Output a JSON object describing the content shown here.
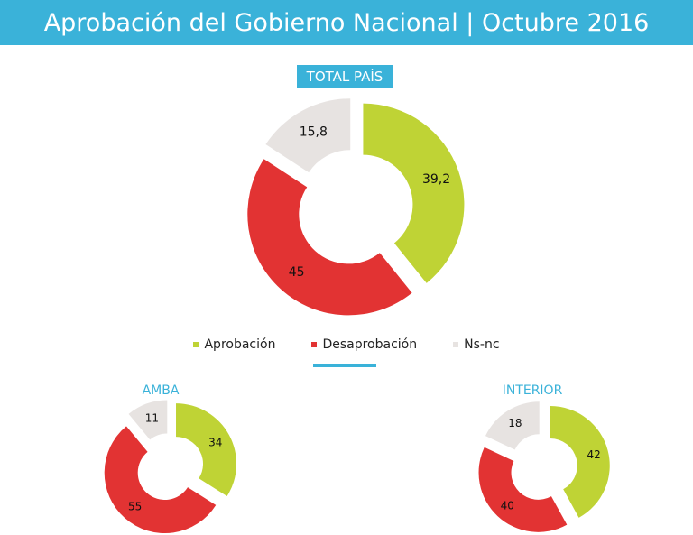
{
  "header": {
    "title": "Aprobación del Gobierno Nacional | Octubre 2016"
  },
  "colors": {
    "header_bg": "#3ab2d9",
    "aprobacion": "#bfd335",
    "desaprobacion": "#e23333",
    "nsnc": "#e7e3e1"
  },
  "legend": [
    {
      "label": "Aprobación",
      "color": "#bfd335"
    },
    {
      "label": "Desaprobación",
      "color": "#e23333"
    },
    {
      "label": "Ns-nc",
      "color": "#e7e3e1"
    }
  ],
  "chart_data": [
    {
      "type": "pie",
      "title": "TOTAL PAÍS",
      "categories": [
        "Aprobación",
        "Desaprobación",
        "Ns-nc"
      ],
      "values": [
        39.2,
        45,
        15.8
      ],
      "labels": [
        "39,2",
        "45",
        "15,8"
      ]
    },
    {
      "type": "pie",
      "title": "AMBA",
      "categories": [
        "Aprobación",
        "Desaprobación",
        "Ns-nc"
      ],
      "values": [
        34,
        55,
        11
      ],
      "labels": [
        "34",
        "55",
        "11"
      ]
    },
    {
      "type": "pie",
      "title": "INTERIOR",
      "categories": [
        "Aprobación",
        "Desaprobación",
        "Ns-nc"
      ],
      "values": [
        42,
        40,
        18
      ],
      "labels": [
        "42",
        "40",
        "18"
      ]
    }
  ]
}
